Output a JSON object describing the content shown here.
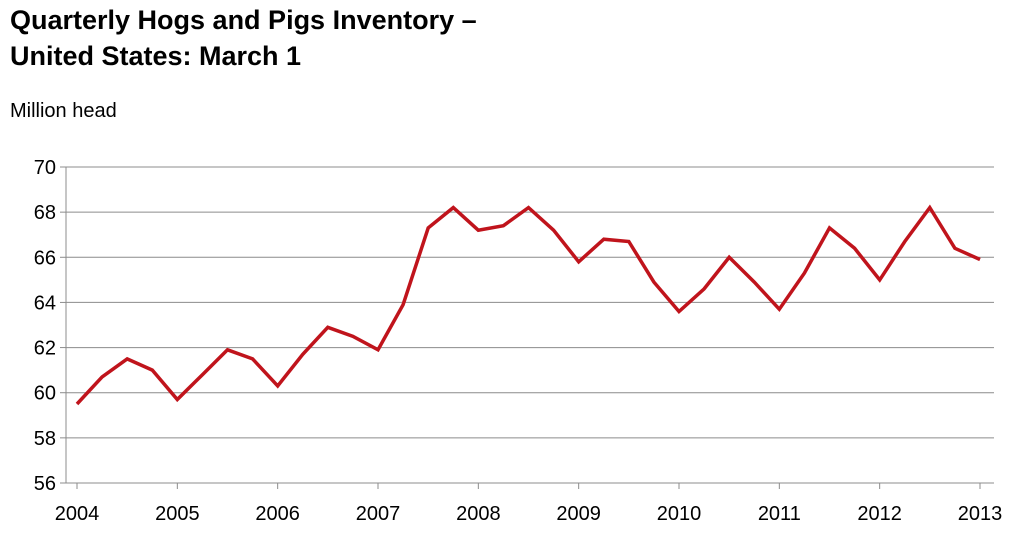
{
  "chart_data": {
    "type": "line",
    "title_lines": [
      "Quarterly Hogs and Pigs Inventory –",
      "United States: March 1"
    ],
    "xlabel": "",
    "ylabel": "Million head",
    "xlim": [
      2004,
      2013
    ],
    "ylim": [
      56,
      70
    ],
    "y_ticks": [
      56,
      58,
      60,
      62,
      64,
      66,
      68,
      70
    ],
    "x_tick_labels": [
      "2004",
      "2005",
      "2006",
      "2007",
      "2008",
      "2009",
      "2010",
      "2011",
      "2012",
      "2013"
    ],
    "grid": true,
    "series_color": "#c0141c",
    "series": [
      {
        "x": [
          2004,
          2004.25,
          2004.5,
          2004.75,
          2005,
          2005.25,
          2005.5,
          2005.75,
          2006,
          2006.25,
          2006.5,
          2006.75,
          2007,
          2007.25,
          2007.5,
          2007.75,
          2008,
          2008.25,
          2008.5,
          2008.75,
          2009,
          2009.25,
          2009.5,
          2009.75,
          2010,
          2010.25,
          2010.5,
          2010.75,
          2011,
          2011.25,
          2011.5,
          2011.75,
          2012,
          2012.25,
          2012.5,
          2012.75,
          2013
        ],
        "values": [
          59.5,
          60.7,
          61.5,
          61.0,
          59.7,
          60.8,
          61.9,
          61.5,
          60.3,
          61.7,
          62.9,
          62.5,
          61.9,
          63.9,
          67.3,
          68.2,
          67.2,
          67.4,
          68.2,
          67.2,
          65.8,
          66.8,
          66.7,
          64.9,
          63.6,
          64.6,
          66.0,
          64.9,
          63.7,
          65.3,
          67.3,
          66.4,
          65.0,
          66.7,
          68.2,
          66.4,
          65.9
        ]
      }
    ]
  }
}
